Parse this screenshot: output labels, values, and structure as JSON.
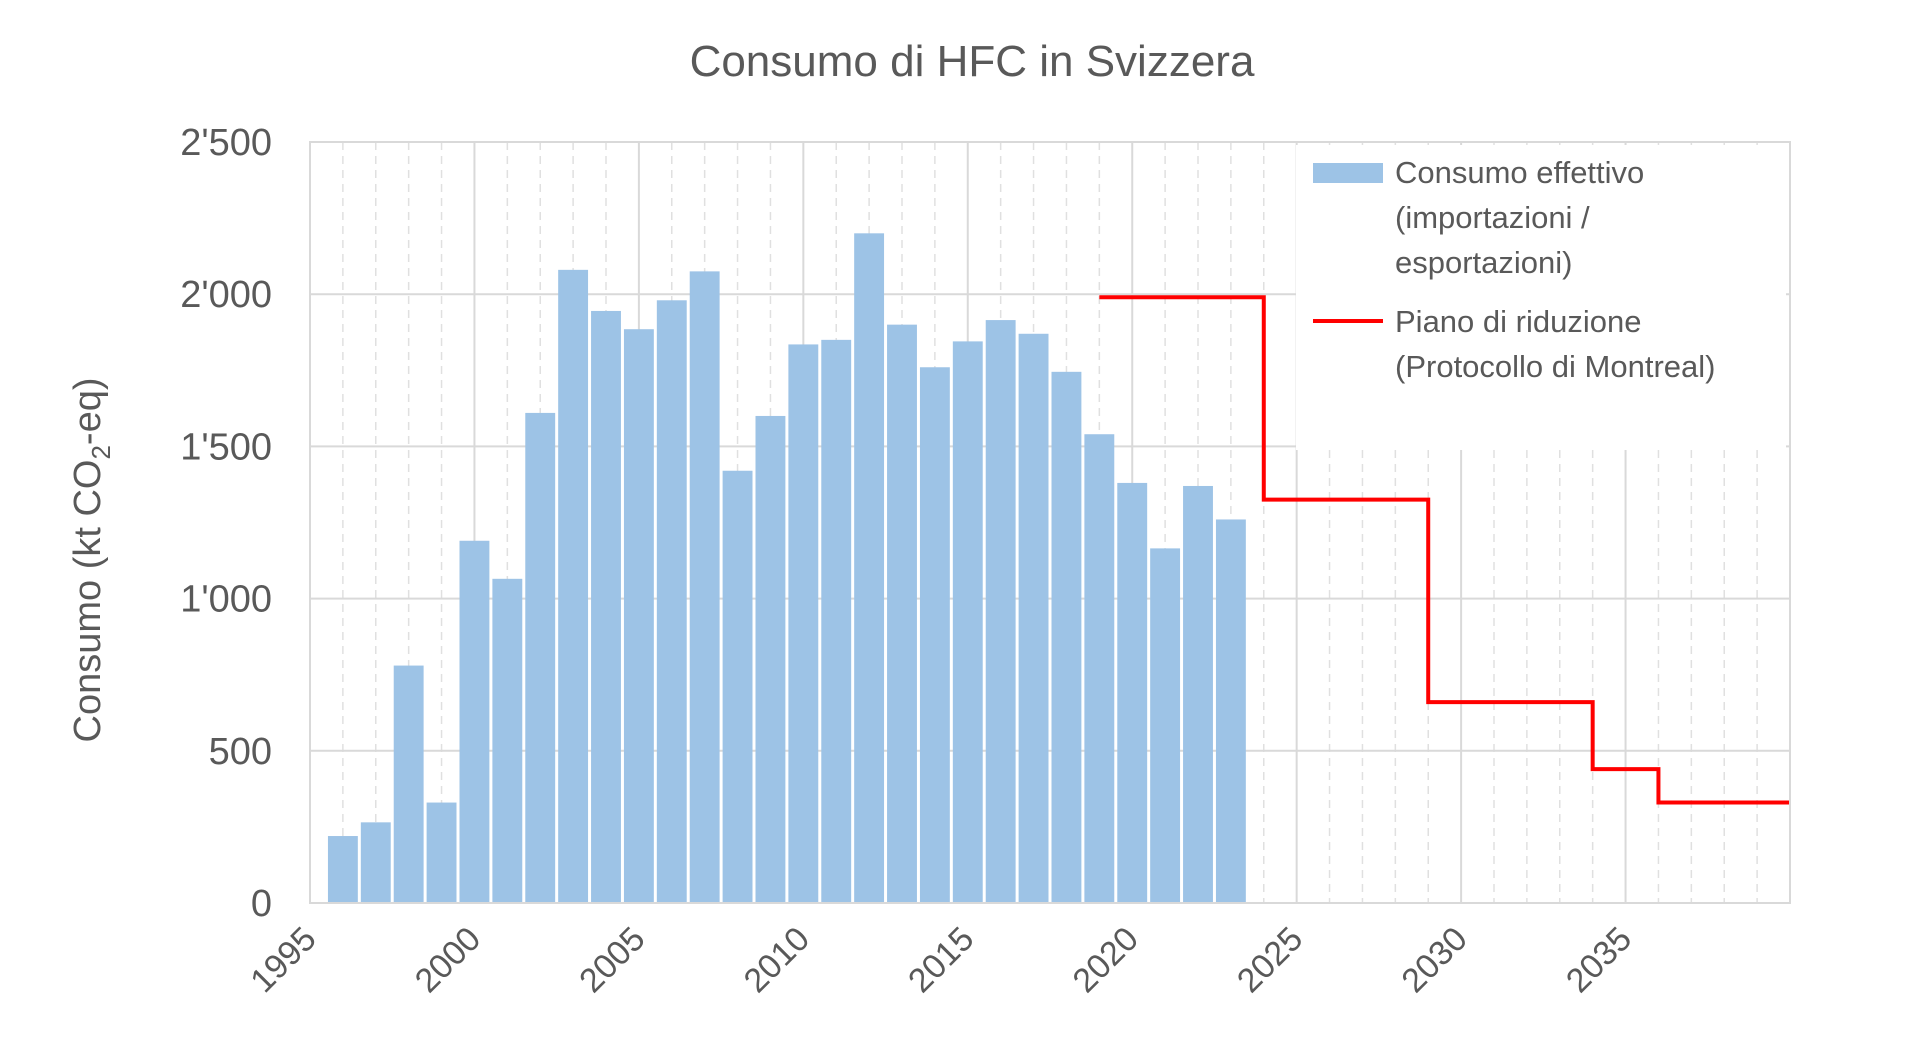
{
  "chart_data": {
    "type": "bar",
    "title": "Consumo di HFC in Svizzera",
    "ylabel_main": "Consumo (kt CO",
    "ylabel_sub": "2",
    "ylabel_end": "-eq)",
    "xlabel": "",
    "ylim": [
      0,
      2500
    ],
    "xlim": [
      1995,
      2040
    ],
    "y_ticks": [
      "0",
      "500",
      "1'000",
      "1'500",
      "2'000",
      "2'500"
    ],
    "y_tick_values": [
      0,
      500,
      1000,
      1500,
      2000,
      2500
    ],
    "x_ticks": [
      "1995",
      "2000",
      "2005",
      "2010",
      "2015",
      "2020",
      "2025",
      "2030",
      "2035"
    ],
    "x_tick_values": [
      1995,
      2000,
      2005,
      2010,
      2015,
      2020,
      2025,
      2030,
      2035
    ],
    "grid": true,
    "legend_position": "top-right",
    "colors": {
      "bars": "#9dc3e6",
      "line": "#ff0000",
      "grid": "#d9d9d9",
      "minor_grid": "#e0e0e0"
    },
    "series": [
      {
        "name": "Consumo effettivo",
        "legend_lines": [
          "Consumo effettivo",
          "(importazioni /",
          "esportazioni)"
        ],
        "kind": "bar",
        "x": [
          1996,
          1997,
          1998,
          1999,
          2000,
          2001,
          2002,
          2003,
          2004,
          2005,
          2006,
          2007,
          2008,
          2009,
          2010,
          2011,
          2012,
          2013,
          2014,
          2015,
          2016,
          2017,
          2018,
          2019,
          2020,
          2021,
          2022,
          2023
        ],
        "values": [
          220,
          265,
          780,
          330,
          1190,
          1065,
          1610,
          2080,
          1945,
          1885,
          1980,
          2075,
          1420,
          1600,
          1835,
          1850,
          2200,
          1900,
          1760,
          1845,
          1915,
          1870,
          1745,
          1540,
          1380,
          1165,
          1370,
          1260
        ]
      },
      {
        "name": "Piano di riduzione",
        "legend_lines": [
          "Piano di riduzione",
          "(Protocollo di Montreal)"
        ],
        "kind": "step-line",
        "points": [
          [
            2019,
            1990
          ],
          [
            2024,
            1990
          ],
          [
            2024,
            1325
          ],
          [
            2029,
            1325
          ],
          [
            2029,
            660
          ],
          [
            2034,
            660
          ],
          [
            2034,
            440
          ],
          [
            2036,
            440
          ],
          [
            2036,
            330
          ],
          [
            2040,
            330
          ]
        ]
      }
    ]
  }
}
